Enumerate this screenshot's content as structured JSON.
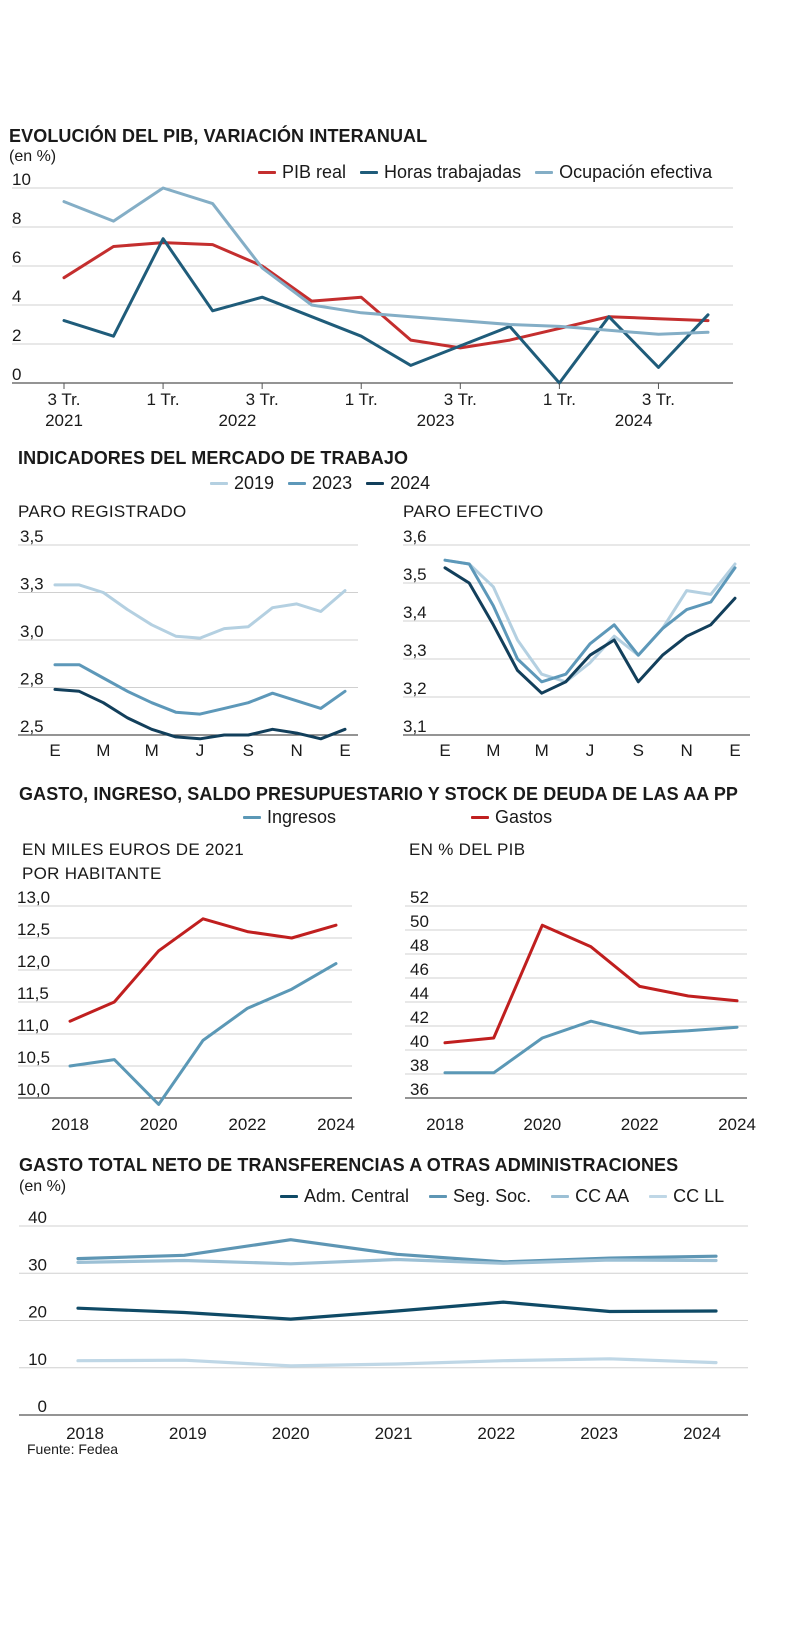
{
  "source": "Fuente: Fedea",
  "colors": {
    "pib": "#c42e2e",
    "horas": "#1f5c7a",
    "ocup": "#84aec6",
    "y2019": "#b4d0e1",
    "y2023": "#5d98b9",
    "y2024": "#123f5b",
    "ingresos": "#5b98b6",
    "gastos": "#c01f1f",
    "central": "#0f4a66",
    "segsoc": "#5e96b4",
    "ccaa": "#9cc0d5",
    "ccll": "#bfd7e6"
  },
  "section1": {
    "title": "EVOLUCIÓN DEL PIB, VARIACIÓN INTERANUAL",
    "unit": "(en %)",
    "legend": [
      "PIB real",
      "Horas trabajadas",
      "Ocupación efectiva"
    ]
  },
  "section2": {
    "title": "INDICADORES DEL MERCADO DE TRABAJO",
    "legend": [
      "2019",
      "2023",
      "2024"
    ],
    "left_title": "PARO REGISTRADO",
    "right_title": "PARO EFECTIVO"
  },
  "section3": {
    "title": "GASTO, INGRESO, SALDO PRESUPUESTARIO Y STOCK DE DEUDA DE LAS AA PP",
    "legend": [
      "Ingresos",
      "Gastos"
    ],
    "left_title_line1": "EN MILES EUROS DE 2021",
    "left_title_line2": "POR HABITANTE",
    "right_title": "EN % DEL PIB"
  },
  "section4": {
    "title": "GASTO TOTAL NETO DE TRANSFERENCIAS A OTRAS ADMINISTRACIONES",
    "unit": "(en %)",
    "legend": [
      "Adm. Central",
      "Seg. Soc.",
      "CC AA",
      "CC LL"
    ]
  },
  "chart_data": [
    {
      "id": "pib",
      "type": "line",
      "title": "EVOLUCIÓN DEL PIB, VARIACIÓN INTERANUAL",
      "ylabel": "(en %)",
      "ylim": [
        0,
        10
      ],
      "yticks": [
        "0",
        "2",
        "4",
        "6",
        "8",
        "10"
      ],
      "xticks": [
        {
          "i": 0,
          "top": "3 Tr.",
          "bottom": "2021"
        },
        {
          "i": 2,
          "top": "1 Tr.",
          "bottom": ""
        },
        {
          "i": 3.5,
          "top": "",
          "bottom": "2022"
        },
        {
          "i": 4,
          "top": "3 Tr.",
          "bottom": ""
        },
        {
          "i": 6,
          "top": "1 Tr.",
          "bottom": ""
        },
        {
          "i": 7.5,
          "top": "",
          "bottom": "2023"
        },
        {
          "i": 8,
          "top": "3 Tr.",
          "bottom": ""
        },
        {
          "i": 10,
          "top": "1 Tr.",
          "bottom": ""
        },
        {
          "i": 11.5,
          "top": "",
          "bottom": "2024"
        },
        {
          "i": 12,
          "top": "3 Tr.",
          "bottom": ""
        }
      ],
      "n": 14,
      "series": [
        {
          "name": "PIB real",
          "color": "pib",
          "values": [
            5.4,
            7.0,
            7.2,
            7.1,
            6.0,
            4.2,
            4.4,
            2.2,
            1.8,
            2.2,
            2.8,
            3.4,
            3.3,
            3.2
          ]
        },
        {
          "name": "Horas trabajadas",
          "color": "horas",
          "values": [
            3.2,
            2.4,
            7.4,
            3.7,
            4.4,
            3.4,
            2.4,
            0.9,
            1.9,
            2.9,
            0.0,
            3.4,
            0.8,
            3.5
          ]
        },
        {
          "name": "Ocupación efectiva",
          "color": "ocup",
          "values": [
            9.3,
            8.3,
            10.0,
            9.2,
            5.9,
            4.0,
            3.6,
            3.4,
            3.2,
            3.0,
            2.9,
            2.7,
            2.5,
            2.6
          ]
        }
      ]
    },
    {
      "id": "paro_registrado",
      "type": "line",
      "title": "PARO REGISTRADO",
      "ylim": [
        2.5,
        3.5
      ],
      "yticks": [
        "2,5",
        "2,8",
        "3,0",
        "3,3",
        "3,5"
      ],
      "xticks": [
        "E",
        "M",
        "M",
        "J",
        "S",
        "N",
        "E"
      ],
      "n": 13,
      "series": [
        {
          "name": "2019",
          "color": "y2019",
          "values": [
            3.29,
            3.29,
            3.25,
            3.16,
            3.08,
            3.02,
            3.01,
            3.06,
            3.07,
            3.17,
            3.19,
            3.15,
            3.26
          ]
        },
        {
          "name": "2023",
          "color": "y2023",
          "values": [
            2.87,
            2.87,
            2.8,
            2.73,
            2.67,
            2.62,
            2.61,
            2.64,
            2.67,
            2.72,
            2.68,
            2.64,
            2.73
          ]
        },
        {
          "name": "2024",
          "color": "y2024",
          "values": [
            2.74,
            2.73,
            2.67,
            2.59,
            2.53,
            2.49,
            2.48,
            2.5,
            2.5,
            2.53,
            2.51,
            2.48,
            2.53
          ]
        }
      ]
    },
    {
      "id": "paro_efectivo",
      "type": "line",
      "title": "PARO EFECTIVO",
      "ylim": [
        3.1,
        3.6
      ],
      "yticks": [
        "3,1",
        "3,2",
        "3,3",
        "3,4",
        "3,5",
        "3,6"
      ],
      "xticks": [
        "E",
        "M",
        "M",
        "J",
        "S",
        "N",
        "E"
      ],
      "n": 13,
      "series": [
        {
          "name": "2019",
          "color": "y2019",
          "values": [
            3.56,
            3.55,
            3.49,
            3.35,
            3.26,
            3.24,
            3.29,
            3.36,
            3.31,
            3.38,
            3.48,
            3.47,
            3.55
          ]
        },
        {
          "name": "2023",
          "color": "y2023",
          "values": [
            3.56,
            3.55,
            3.44,
            3.3,
            3.24,
            3.26,
            3.34,
            3.39,
            3.31,
            3.38,
            3.43,
            3.45,
            3.54
          ]
        },
        {
          "name": "2024",
          "color": "y2024",
          "values": [
            3.54,
            3.5,
            3.39,
            3.27,
            3.21,
            3.24,
            3.31,
            3.35,
            3.24,
            3.31,
            3.36,
            3.39,
            3.46
          ]
        }
      ]
    },
    {
      "id": "gasto_ingreso_euros",
      "type": "line",
      "title": "EN MILES EUROS DE 2021 POR HABITANTE",
      "ylim": [
        10.0,
        13.0
      ],
      "yticks": [
        "10,0",
        "10,5",
        "11,0",
        "11,5",
        "12,0",
        "12,5",
        "13,0"
      ],
      "xticks": [
        "2018",
        "2020",
        "2022",
        "2024"
      ],
      "x": [
        2018,
        2019,
        2020,
        2021,
        2022,
        2023,
        2024
      ],
      "xrange": [
        2018,
        2024
      ],
      "series": [
        {
          "name": "Ingresos",
          "color": "ingresos",
          "values": [
            10.5,
            10.6,
            9.9,
            10.9,
            11.4,
            11.7,
            12.1
          ]
        },
        {
          "name": "Gastos",
          "color": "gastos",
          "values": [
            11.2,
            11.5,
            12.3,
            12.8,
            12.6,
            12.5,
            12.7
          ]
        }
      ]
    },
    {
      "id": "gasto_ingreso_pib",
      "type": "line",
      "title": "EN % DEL PIB",
      "ylim": [
        36,
        52
      ],
      "yticks": [
        "36",
        "38",
        "40",
        "42",
        "44",
        "46",
        "48",
        "50",
        "52"
      ],
      "xticks": [
        "2018",
        "2020",
        "2022",
        "2024"
      ],
      "x": [
        2018,
        2019,
        2020,
        2021,
        2022,
        2023,
        2024
      ],
      "xrange": [
        2018,
        2024
      ],
      "series": [
        {
          "name": "Ingresos",
          "color": "ingresos",
          "values": [
            38.1,
            38.1,
            41.0,
            42.4,
            41.4,
            41.6,
            41.9
          ]
        },
        {
          "name": "Gastos",
          "color": "gastos",
          "values": [
            40.6,
            41.0,
            50.4,
            48.6,
            45.3,
            44.5,
            44.1
          ]
        }
      ]
    },
    {
      "id": "gasto_total_neto",
      "type": "line",
      "title": "GASTO TOTAL NETO DE TRANSFERENCIAS A OTRAS ADMINISTRACIONES",
      "ylabel": "(en %)",
      "ylim": [
        0,
        40
      ],
      "yticks": [
        "0",
        "10",
        "20",
        "30",
        "40"
      ],
      "xticks": [
        "2018",
        "2019",
        "2020",
        "2021",
        "2022",
        "2023",
        "2024"
      ],
      "x": [
        2018,
        2019,
        2020,
        2021,
        2022,
        2023,
        2024
      ],
      "series": [
        {
          "name": "Adm. Central",
          "color": "central",
          "values": [
            22.6,
            21.7,
            20.3,
            22.0,
            23.9,
            21.9,
            22.0
          ]
        },
        {
          "name": "Seg. Soc.",
          "color": "segsoc",
          "values": [
            33.1,
            33.8,
            37.1,
            34.0,
            32.4,
            33.2,
            33.6
          ]
        },
        {
          "name": "CC AA",
          "color": "ccaa",
          "values": [
            32.3,
            32.7,
            32.0,
            32.9,
            32.1,
            32.8,
            32.7
          ]
        },
        {
          "name": "CC LL",
          "color": "ccll",
          "values": [
            11.5,
            11.6,
            10.4,
            10.8,
            11.5,
            11.9,
            11.1
          ]
        }
      ]
    }
  ]
}
